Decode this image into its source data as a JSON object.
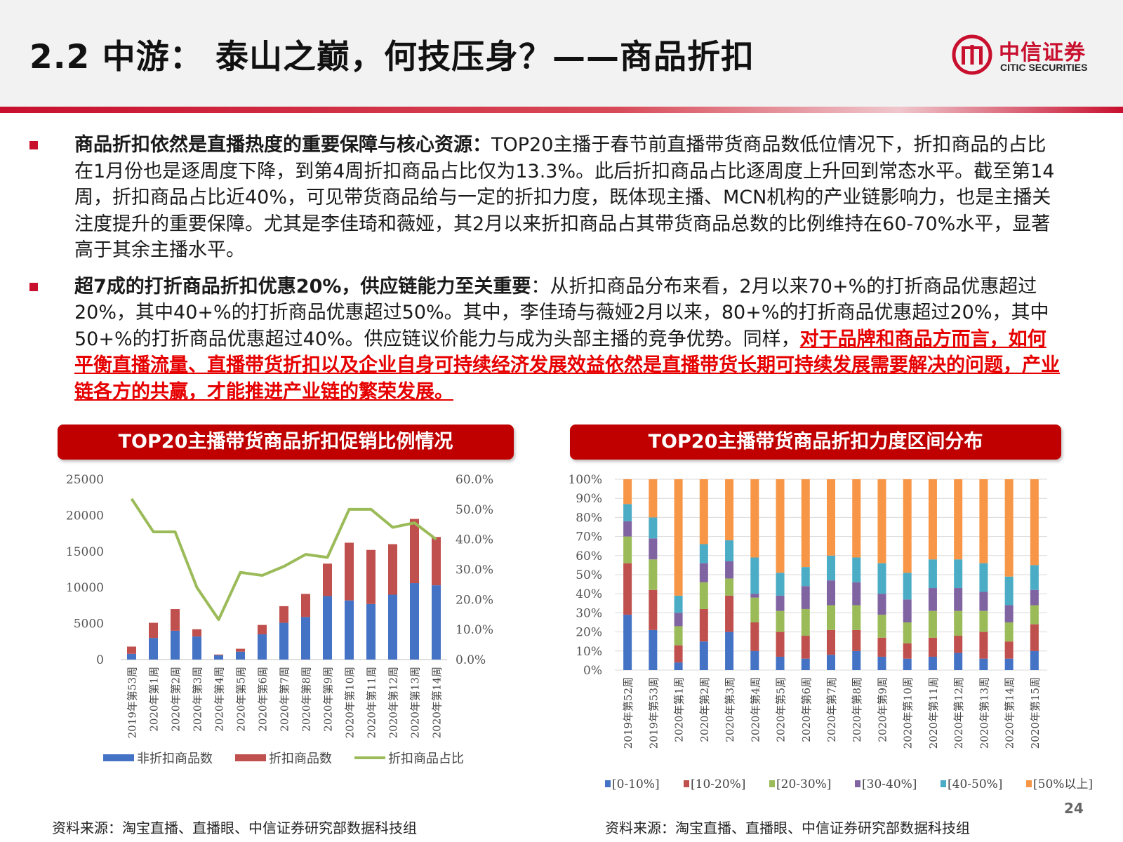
{
  "header": {
    "title": "2.2 中游： 泰山之巅，何技压身？——商品折扣",
    "logo_cn": "中信证券",
    "logo_en": "CITIC SECURITIES"
  },
  "bullets": [
    {
      "bold": "商品折扣依然是直播热度的重要保障与核心资源：",
      "text": "TOP20主播于春节前直播带货商品数低位情况下，折扣商品的占比在1月份也是逐周度下降，到第4周折扣商品占比仅为13.3%。此后折扣商品占比逐周度上升回到常态水平。截至第14周，折扣商品占比近40%，可见带货商品给与一定的折扣力度，既体现主播、MCN机构的产业链影响力，也是主播关注度提升的重要保障。尤其是李佳琦和薇娅，其2月以来折扣商品占其带货商品总数的比例维持在60-70%水平，显著高于其余主播水平。",
      "red": ""
    },
    {
      "bold": "超7成的打折商品折扣优惠20%，供应链能力至关重要",
      "text": "：从折扣商品分布来看，2月以来70+%的打折商品优惠超过20%，其中40+%的打折商品优惠超过50%。其中，李佳琦与薇娅2月以来，80+%的打折商品优惠超过20%，其中50+%的打折商品优惠超过40%。供应链议价能力与成为头部主播的竞争优势。同样，",
      "red": "对于品牌和商品方而言，如何平衡直播流量、直播带货折扣以及企业自身可持续经济发展效益依然是直播带货长期可持续发展需要解决的问题，产业链各方的共赢，才能推进产业链的繁荣发展。"
    }
  ],
  "chart_data": [
    {
      "type": "bar",
      "title": "TOP20主播带货商品折扣促销比例情况",
      "stacked": true,
      "categories": [
        "2019年第53周",
        "2020年第1周",
        "2020年第2周",
        "2020年第3周",
        "2020年第4周",
        "2020年第5周",
        "2020年第6周",
        "2020年第7周",
        "2020年第8周",
        "2020年第9周",
        "2020年第10周",
        "2020年第11周",
        "2020年第12周",
        "2020年第13周",
        "2020年第14周"
      ],
      "series": [
        {
          "name": "非折扣商品数",
          "type": "bar",
          "axis": "left",
          "color": "#4472c4",
          "values": [
            800,
            3000,
            4000,
            3200,
            600,
            1100,
            3500,
            5100,
            5900,
            8800,
            8200,
            7700,
            9000,
            10600,
            10300
          ]
        },
        {
          "name": "折扣商品数",
          "type": "bar",
          "axis": "left",
          "color": "#c0504d",
          "values": [
            1000,
            2100,
            3000,
            1000,
            100,
            400,
            1300,
            2300,
            3200,
            4500,
            8000,
            7500,
            7000,
            8900,
            6700
          ]
        },
        {
          "name": "折扣商品占比",
          "type": "line",
          "axis": "right",
          "color": "#9bbb59",
          "values": [
            53.5,
            42.5,
            42.5,
            24.0,
            13.3,
            29.0,
            28.0,
            31.0,
            35.0,
            34.0,
            50.0,
            50.0,
            44.0,
            45.5,
            40.0
          ]
        }
      ],
      "ylim": [
        0,
        25000
      ],
      "yticks": [
        "25000",
        "20000",
        "15000",
        "10000",
        "5000",
        "0"
      ],
      "y2lim": [
        0,
        60
      ],
      "y2ticks": [
        "60.0%",
        "50.0%",
        "40.0%",
        "30.0%",
        "20.0%",
        "10.0%",
        "0.0%"
      ],
      "legend_position": "bottom",
      "source": "资料来源：淘宝直播、直播眼、中信证券研究部数据科技组"
    },
    {
      "type": "bar",
      "title": "TOP20主播带货商品折扣力度区间分布",
      "stacked": true,
      "percent": true,
      "categories": [
        "2019年第52周",
        "2019年第53周",
        "2020年第1周",
        "2020年第2周",
        "2020年第3周",
        "2020年第4周",
        "2020年第5周",
        "2020年第6周",
        "2020年第7周",
        "2020年第8周",
        "2020年第9周",
        "2020年第10周",
        "2020年第11周",
        "2020年第12周",
        "2020年第13周",
        "2020年第14周",
        "2020年第15周"
      ],
      "series": [
        {
          "name": "[0-10%]",
          "color": "#4472c4",
          "values": [
            29,
            21,
            4,
            15,
            20,
            10,
            7,
            6,
            8,
            10,
            7,
            6,
            7,
            9,
            6,
            6,
            10
          ]
        },
        {
          "name": "[10-20%]",
          "color": "#c0504d",
          "values": [
            27,
            21,
            9,
            17,
            19,
            15,
            13,
            12,
            13,
            11,
            10,
            8,
            10,
            9,
            14,
            9,
            14
          ]
        },
        {
          "name": "[20-30%]",
          "color": "#9bbb59",
          "values": [
            14,
            16,
            10,
            14,
            9,
            13,
            11,
            14,
            13,
            13,
            12,
            11,
            14,
            13,
            11,
            10,
            10
          ]
        },
        {
          "name": "[30-40%]",
          "color": "#8064a2",
          "values": [
            8,
            11,
            7,
            10,
            9,
            2,
            8,
            12,
            13,
            12,
            11,
            12,
            12,
            12,
            10,
            9,
            8
          ]
        },
        {
          "name": "[40-50%]",
          "color": "#4bacc6",
          "values": [
            9,
            11,
            9,
            10,
            11,
            19,
            12,
            10,
            13,
            13,
            16,
            14,
            15,
            15,
            15,
            15,
            13
          ]
        },
        {
          "name": "[50%以上]",
          "color": "#f79646",
          "values": [
            13,
            20,
            61,
            34,
            32,
            41,
            49,
            46,
            40,
            41,
            44,
            49,
            42,
            42,
            44,
            51,
            45
          ]
        }
      ],
      "ylim": [
        0,
        100
      ],
      "yticks": [
        "100%",
        "90%",
        "80%",
        "70%",
        "60%",
        "50%",
        "40%",
        "30%",
        "20%",
        "10%",
        "0%"
      ],
      "legend_position": "bottom",
      "source": "资料来源：淘宝直播、直播眼、中信证券研究部数据科技组"
    }
  ],
  "page_number": "24"
}
